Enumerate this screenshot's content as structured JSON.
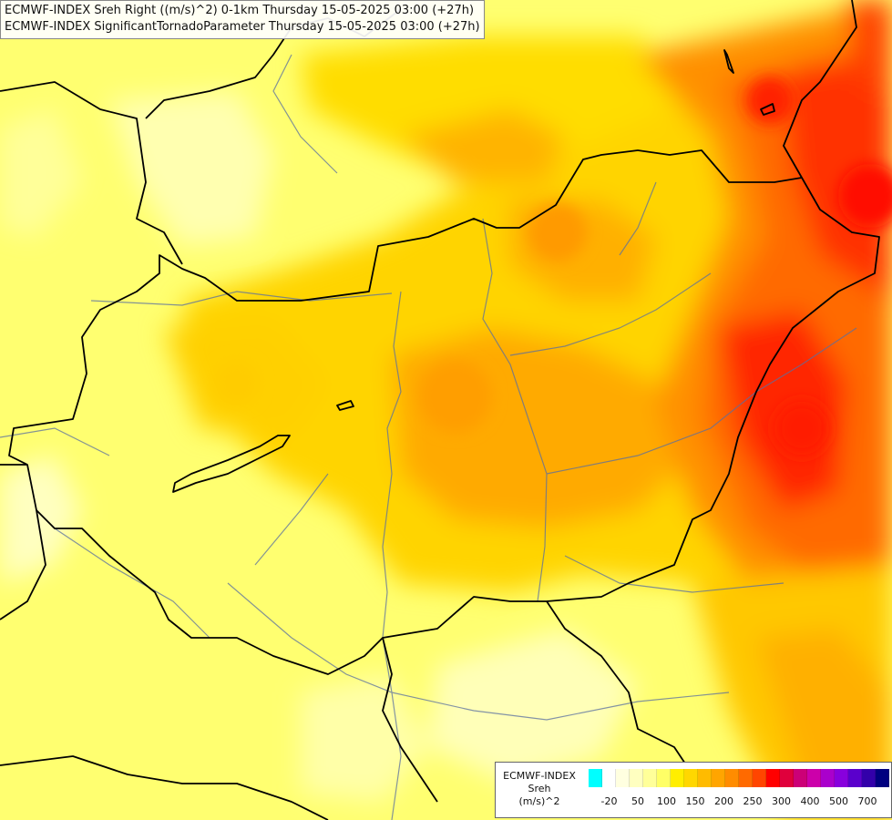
{
  "title": {
    "line1": "ECMWF-INDEX Sreh Right ((m/s)^2) 0-1km Thursday 15-05-2025 03:00 (+27h)",
    "line2": "ECMWF-INDEX SignificantTornadoParameter Thursday 15-05-2025 03:00 (+27h)"
  },
  "legend": {
    "line1": "ECMWF-INDEX",
    "line2": "Sreh",
    "line3": "(m/s)^2",
    "colors": [
      "#00ffff",
      "#ffffff",
      "#ffffe0",
      "#ffffc0",
      "#ffff99",
      "#ffff66",
      "#ffee00",
      "#ffd700",
      "#ffbb00",
      "#ffa500",
      "#ff8c00",
      "#ff6a00",
      "#ff4500",
      "#ff0000",
      "#e0003c",
      "#cc0077",
      "#cc00aa",
      "#aa00cc",
      "#8800dd",
      "#5a00cc",
      "#3300aa",
      "#000080"
    ],
    "ticks": [
      "-20",
      "50",
      "100",
      "150",
      "200",
      "250",
      "300",
      "400",
      "500",
      "700"
    ]
  }
}
